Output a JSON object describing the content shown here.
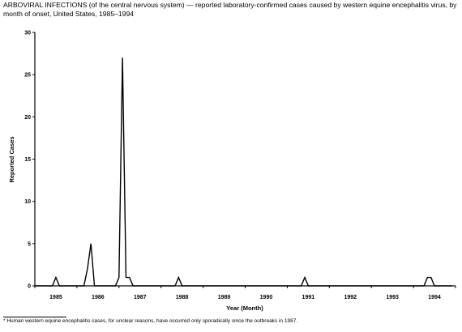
{
  "chart_data": {
    "type": "line",
    "title": "ARBOVIRAL INFECTIONS (of the central nervous system) — reported laboratory-confirmed cases caused by western equine encephalitis virus, by month of onset, United States, 1985–1994",
    "xlabel": "Year (Month)",
    "ylabel": "Reported Cases",
    "ylim": [
      0,
      30
    ],
    "yticks": [
      0,
      5,
      10,
      15,
      20,
      25,
      30
    ],
    "xlim": [
      1985,
      1995
    ],
    "year_labels": [
      "1985",
      "1986",
      "1987",
      "1988",
      "1989",
      "1990",
      "1991",
      "1992",
      "1993",
      "1994"
    ],
    "grid": false,
    "series": [
      {
        "values": [
          {
            "month": "1985-01",
            "cases": 0
          },
          {
            "month": "1985-06",
            "cases": 0
          },
          {
            "month": "1985-07",
            "cases": 1
          },
          {
            "month": "1985-08",
            "cases": 0
          },
          {
            "month": "1986-01",
            "cases": 0
          },
          {
            "month": "1986-03",
            "cases": 0
          },
          {
            "month": "1986-04",
            "cases": 2
          },
          {
            "month": "1986-05",
            "cases": 5
          },
          {
            "month": "1986-06",
            "cases": 0
          },
          {
            "month": "1986-12",
            "cases": 0
          },
          {
            "month": "1987-01",
            "cases": 1
          },
          {
            "month": "1987-02",
            "cases": 27
          },
          {
            "month": "1987-03",
            "cases": 1
          },
          {
            "month": "1987-04",
            "cases": 1
          },
          {
            "month": "1987-05",
            "cases": 0
          },
          {
            "month": "1988-05",
            "cases": 0
          },
          {
            "month": "1988-06",
            "cases": 1
          },
          {
            "month": "1988-07",
            "cases": 0
          },
          {
            "month": "1991-05",
            "cases": 0
          },
          {
            "month": "1991-06",
            "cases": 1
          },
          {
            "month": "1991-07",
            "cases": 0
          },
          {
            "month": "1994-04",
            "cases": 0
          },
          {
            "month": "1994-05",
            "cases": 1
          },
          {
            "month": "1994-06",
            "cases": 1
          },
          {
            "month": "1994-07",
            "cases": 0
          },
          {
            "month": "1994-12",
            "cases": 0
          }
        ]
      }
    ]
  },
  "footnote": "* Human western equine encephalitis cases, for unclear reasons, have occurred only sporadically since the outbreaks in 1987."
}
